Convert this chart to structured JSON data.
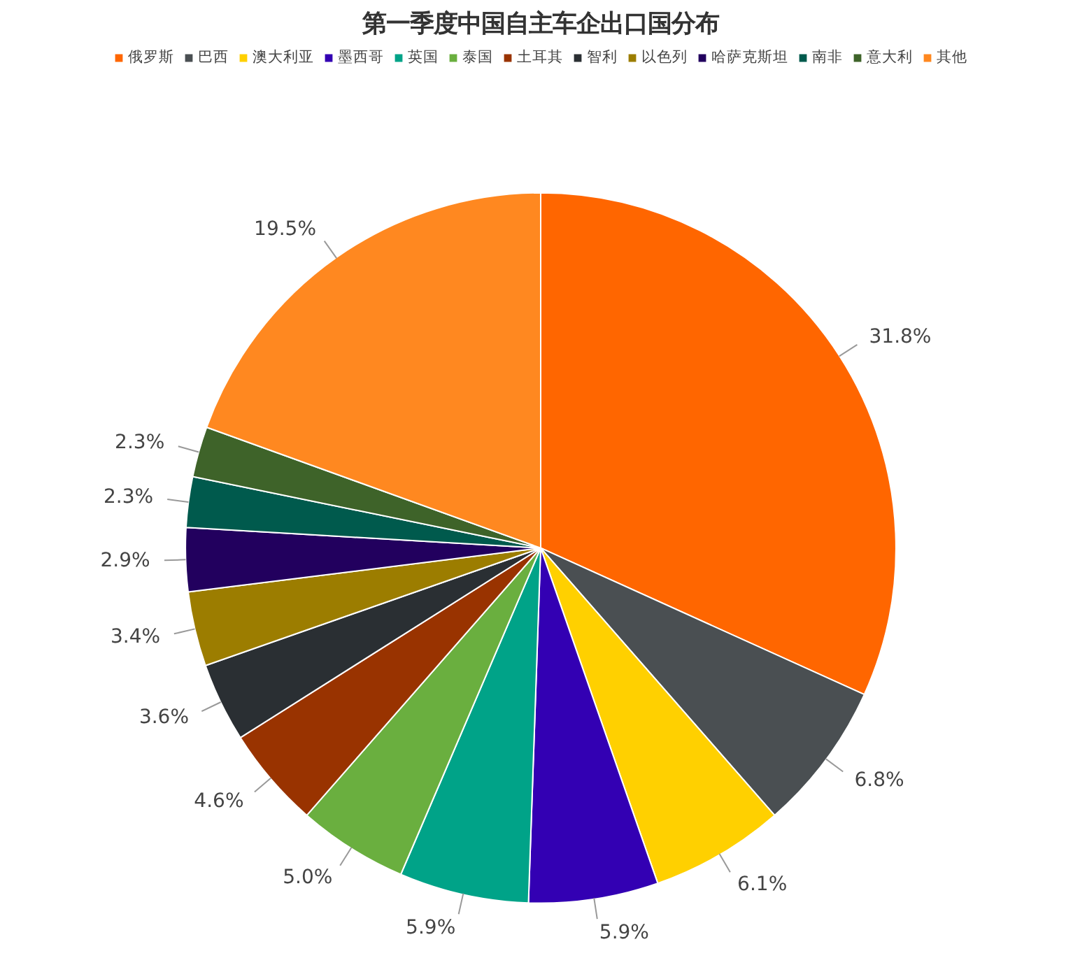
{
  "chart_data": {
    "type": "pie",
    "title": "第一季度中国自主车企出口国分布",
    "categories": [
      "俄罗斯",
      "巴西",
      "澳大利亚",
      "墨西哥",
      "英国",
      "泰国",
      "土耳其",
      "智利",
      "以色列",
      "哈萨克斯坦",
      "南非",
      "意大利",
      "其他"
    ],
    "values": [
      31.8,
      6.8,
      6.1,
      5.9,
      5.9,
      5.0,
      4.6,
      3.6,
      3.4,
      2.9,
      2.3,
      2.3,
      19.5
    ],
    "value_labels": [
      "31.8%",
      "6.8%",
      "6.1%",
      "5.9%",
      "5.9%",
      "5.0%",
      "4.6%",
      "3.6%",
      "3.4%",
      "2.9%",
      "2.3%",
      "2.3%",
      "19.5%"
    ],
    "colors": [
      "#ff6600",
      "#4a4f52",
      "#ffd000",
      "#3300b3",
      "#00a388",
      "#6aaf3f",
      "#993300",
      "#2a2f33",
      "#9c7d00",
      "#22005e",
      "#005a4d",
      "#3e6329",
      "#ff8820"
    ],
    "legend": "top"
  }
}
